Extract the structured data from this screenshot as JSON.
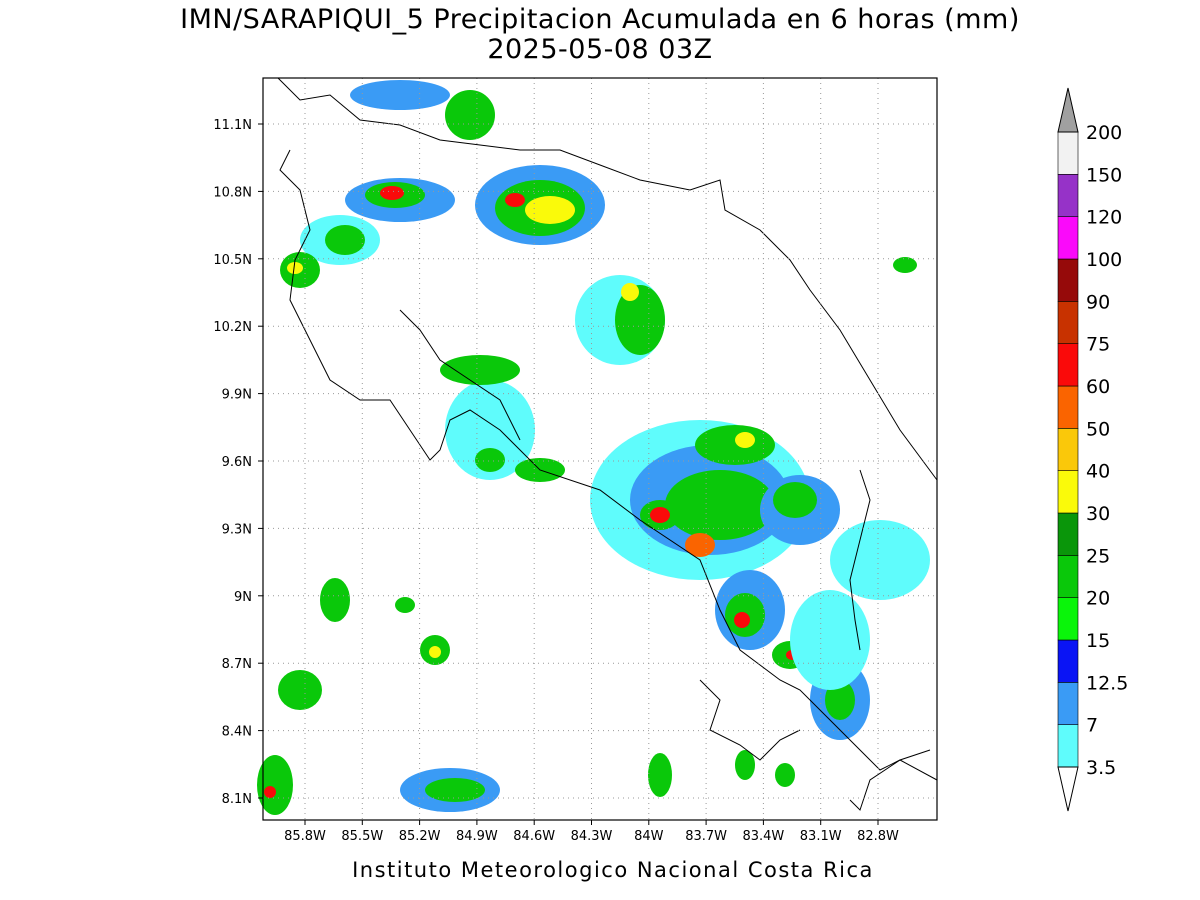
{
  "header": {
    "title": "IMN/SARAPIQUI_5 Precipitacion Acumulada en 6 horas (mm)",
    "subtitle": "2025-05-08 03Z"
  },
  "map": {
    "lat_labels": [
      "11.1N",
      "10.8N",
      "10.5N",
      "10.2N",
      "9.9N",
      "9.6N",
      "9.3N",
      "9N",
      "8.7N",
      "8.4N",
      "8.1N"
    ],
    "lon_labels": [
      "85.8W",
      "85.5W",
      "85.2W",
      "84.9W",
      "84.6W",
      "84.3W",
      "84W",
      "83.7W",
      "83.4W",
      "83.1W",
      "82.8W"
    ]
  },
  "colorbar": {
    "levels": [
      3.5,
      7,
      12.5,
      15,
      20,
      25,
      30,
      40,
      50,
      60,
      75,
      90,
      100,
      120,
      150,
      200
    ],
    "colors": [
      "#5ffcfc",
      "#3a9bf5",
      "#0a14f5",
      "#0af50a",
      "#0ac80a",
      "#0a960a",
      "#fafa0a",
      "#fac80a",
      "#fa6400",
      "#fa0a0a",
      "#c83200",
      "#960a0a",
      "#fa0afa",
      "#9632c8",
      "#f2f2f2"
    ],
    "under_color": "#ffffff",
    "over_color": "#a0a0a0"
  },
  "footer": "Instituto Meteorologico Nacional Costa Rica"
}
